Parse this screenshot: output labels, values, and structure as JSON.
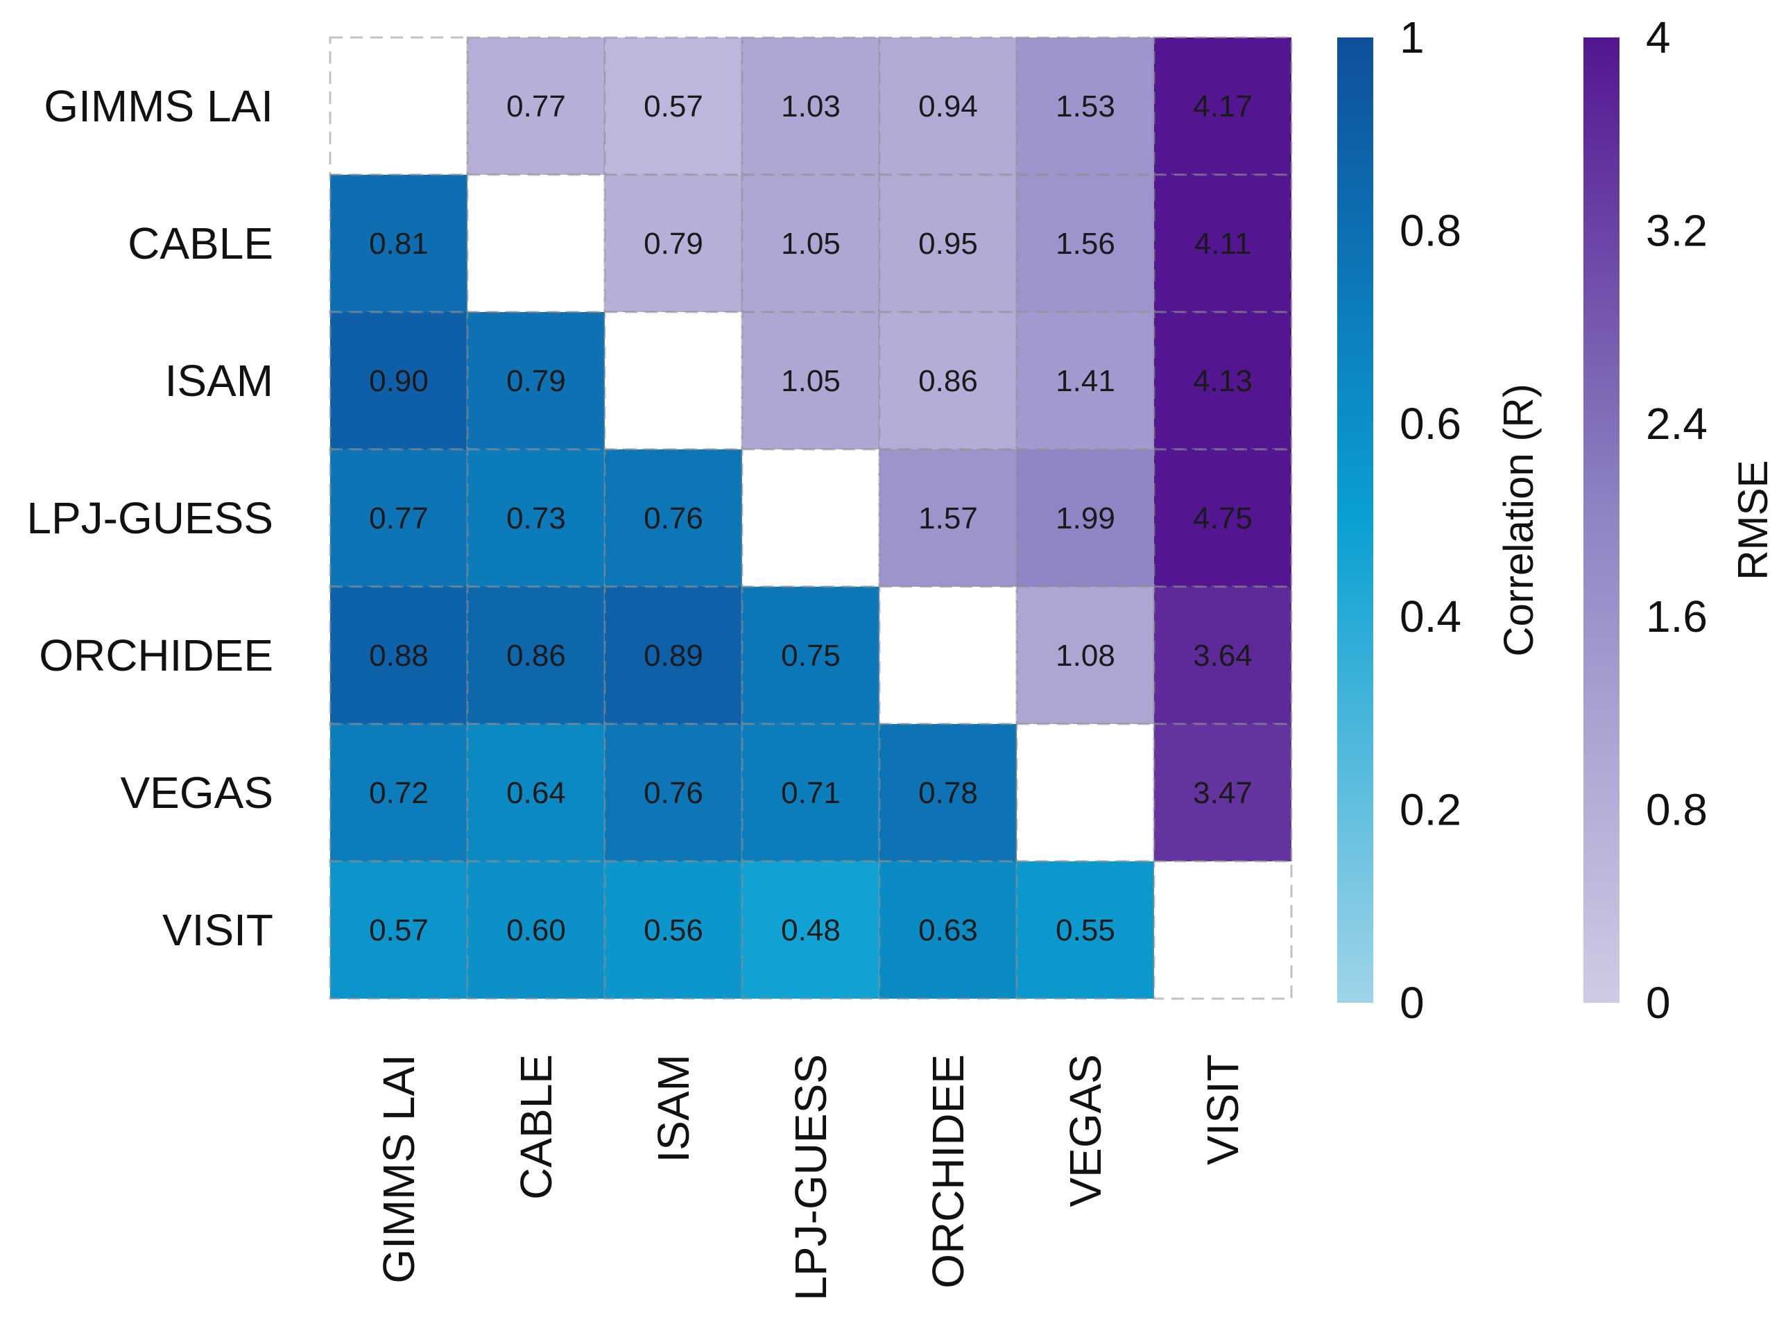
{
  "chart_data": {
    "type": "heatmap",
    "title": "",
    "rows": [
      "GIMMS LAI",
      "CABLE",
      "ISAM",
      "LPJ-GUESS",
      "ORCHIDEE",
      "VEGAS",
      "VISIT"
    ],
    "columns": [
      "GIMMS LAI",
      "CABLE",
      "ISAM",
      "LPJ-GUESS",
      "ORCHIDEE",
      "VEGAS",
      "VISIT"
    ],
    "upper_triangle_metric": "RMSE",
    "lower_triangle_metric": "Correlation (R)",
    "values": [
      [
        null,
        0.77,
        0.57,
        1.03,
        0.94,
        1.53,
        4.17
      ],
      [
        0.81,
        null,
        0.79,
        1.05,
        0.95,
        1.56,
        4.11
      ],
      [
        0.9,
        0.79,
        null,
        1.05,
        0.86,
        1.41,
        4.13
      ],
      [
        0.77,
        0.73,
        0.76,
        null,
        1.57,
        1.99,
        4.75
      ],
      [
        0.88,
        0.86,
        0.89,
        0.75,
        null,
        1.08,
        3.64
      ],
      [
        0.72,
        0.64,
        0.76,
        0.71,
        0.78,
        null,
        3.47
      ],
      [
        0.57,
        0.6,
        0.56,
        0.48,
        0.63,
        0.55,
        null
      ]
    ],
    "colorbars": [
      {
        "label": "Correlation (R)",
        "range": [
          0,
          1
        ],
        "ticks": [
          "0",
          "0.2",
          "0.4",
          "0.6",
          "0.8",
          "1"
        ],
        "color_low": "#9fd4e8",
        "color_mid": "#0aa0d2",
        "color_high": "#0f4f9c"
      },
      {
        "label": "RMSE",
        "range": [
          0,
          4
        ],
        "ticks": [
          "0",
          "0.8",
          "1.6",
          "2.4",
          "3.2",
          "4"
        ],
        "color_low": "#cfcbe5",
        "color_mid": "#8e86c4",
        "color_high": "#531690"
      }
    ],
    "diagonal": "empty"
  }
}
